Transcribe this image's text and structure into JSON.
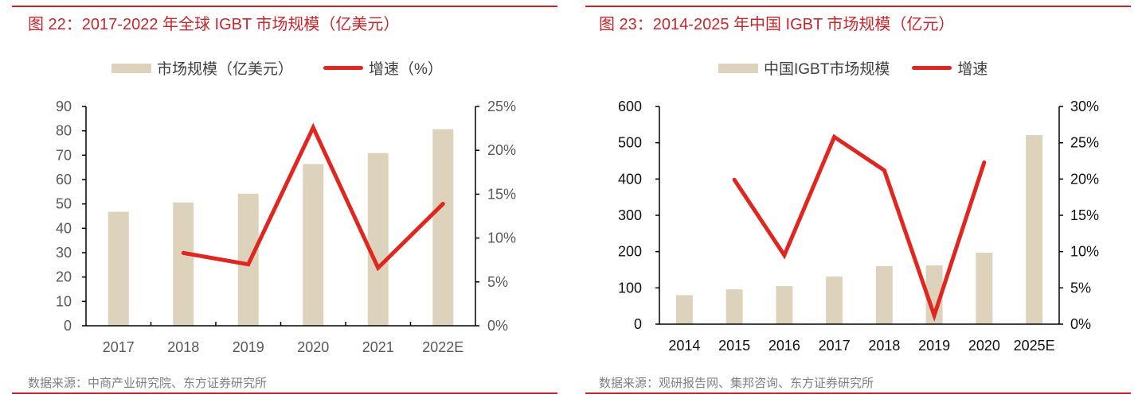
{
  "chart_data": [
    {
      "type": "bar+line",
      "title": "图 22：2017-2022 年全球 IGBT 市场规模（亿美元）",
      "source": "数据来源：中商产业研究院、东方证券研究所",
      "categories": [
        "2017",
        "2018",
        "2019",
        "2020",
        "2021",
        "2022E"
      ],
      "series": [
        {
          "name": "市场规模（亿美元）",
          "type": "bar",
          "axis": "left",
          "color": "#ddd3bd",
          "values": [
            46.8,
            50.6,
            54.2,
            66.4,
            70.9,
            80.7
          ]
        },
        {
          "name": "增速（%）",
          "type": "line",
          "axis": "right",
          "color": "#e0261f",
          "values": [
            null,
            8.3,
            7.0,
            22.6,
            6.6,
            13.9
          ]
        }
      ],
      "y_left": {
        "ylim": [
          0,
          90
        ],
        "ticks": [
          "0",
          "10",
          "20",
          "30",
          "40",
          "50",
          "60",
          "70",
          "80",
          "90"
        ]
      },
      "y_right": {
        "ylim": [
          0,
          25
        ],
        "ticks": [
          "0%",
          "5%",
          "10%",
          "15%",
          "20%",
          "25%"
        ]
      },
      "legend": "top-center",
      "grid": false
    },
    {
      "type": "bar+line",
      "title": "图 23：2014-2025 年中国 IGBT 市场规模（亿元）",
      "source": "数据来源：观研报告网、集邦咨询、东方证券研究所",
      "categories": [
        "2014",
        "2015",
        "2016",
        "2017",
        "2018",
        "2019",
        "2020",
        "2025E"
      ],
      "series": [
        {
          "name": "中国IGBT市场规模",
          "type": "bar",
          "axis": "left",
          "color": "#ddd3bd",
          "values": [
            80,
            96,
            105,
            131,
            160,
            162,
            197,
            521
          ]
        },
        {
          "name": "增速",
          "type": "line",
          "axis": "right",
          "color": "#e0261f",
          "values": [
            null,
            19.9,
            9.5,
            25.8,
            21.2,
            1.2,
            22.3,
            null
          ]
        }
      ],
      "y_left": {
        "ylim": [
          0,
          600
        ],
        "ticks": [
          "0",
          "100",
          "200",
          "300",
          "400",
          "500",
          "600"
        ]
      },
      "y_right": {
        "ylim": [
          0,
          30
        ],
        "ticks": [
          "0%",
          "5%",
          "10%",
          "15%",
          "20%",
          "25%",
          "30%"
        ]
      },
      "legend": "top-center",
      "grid": false
    }
  ]
}
